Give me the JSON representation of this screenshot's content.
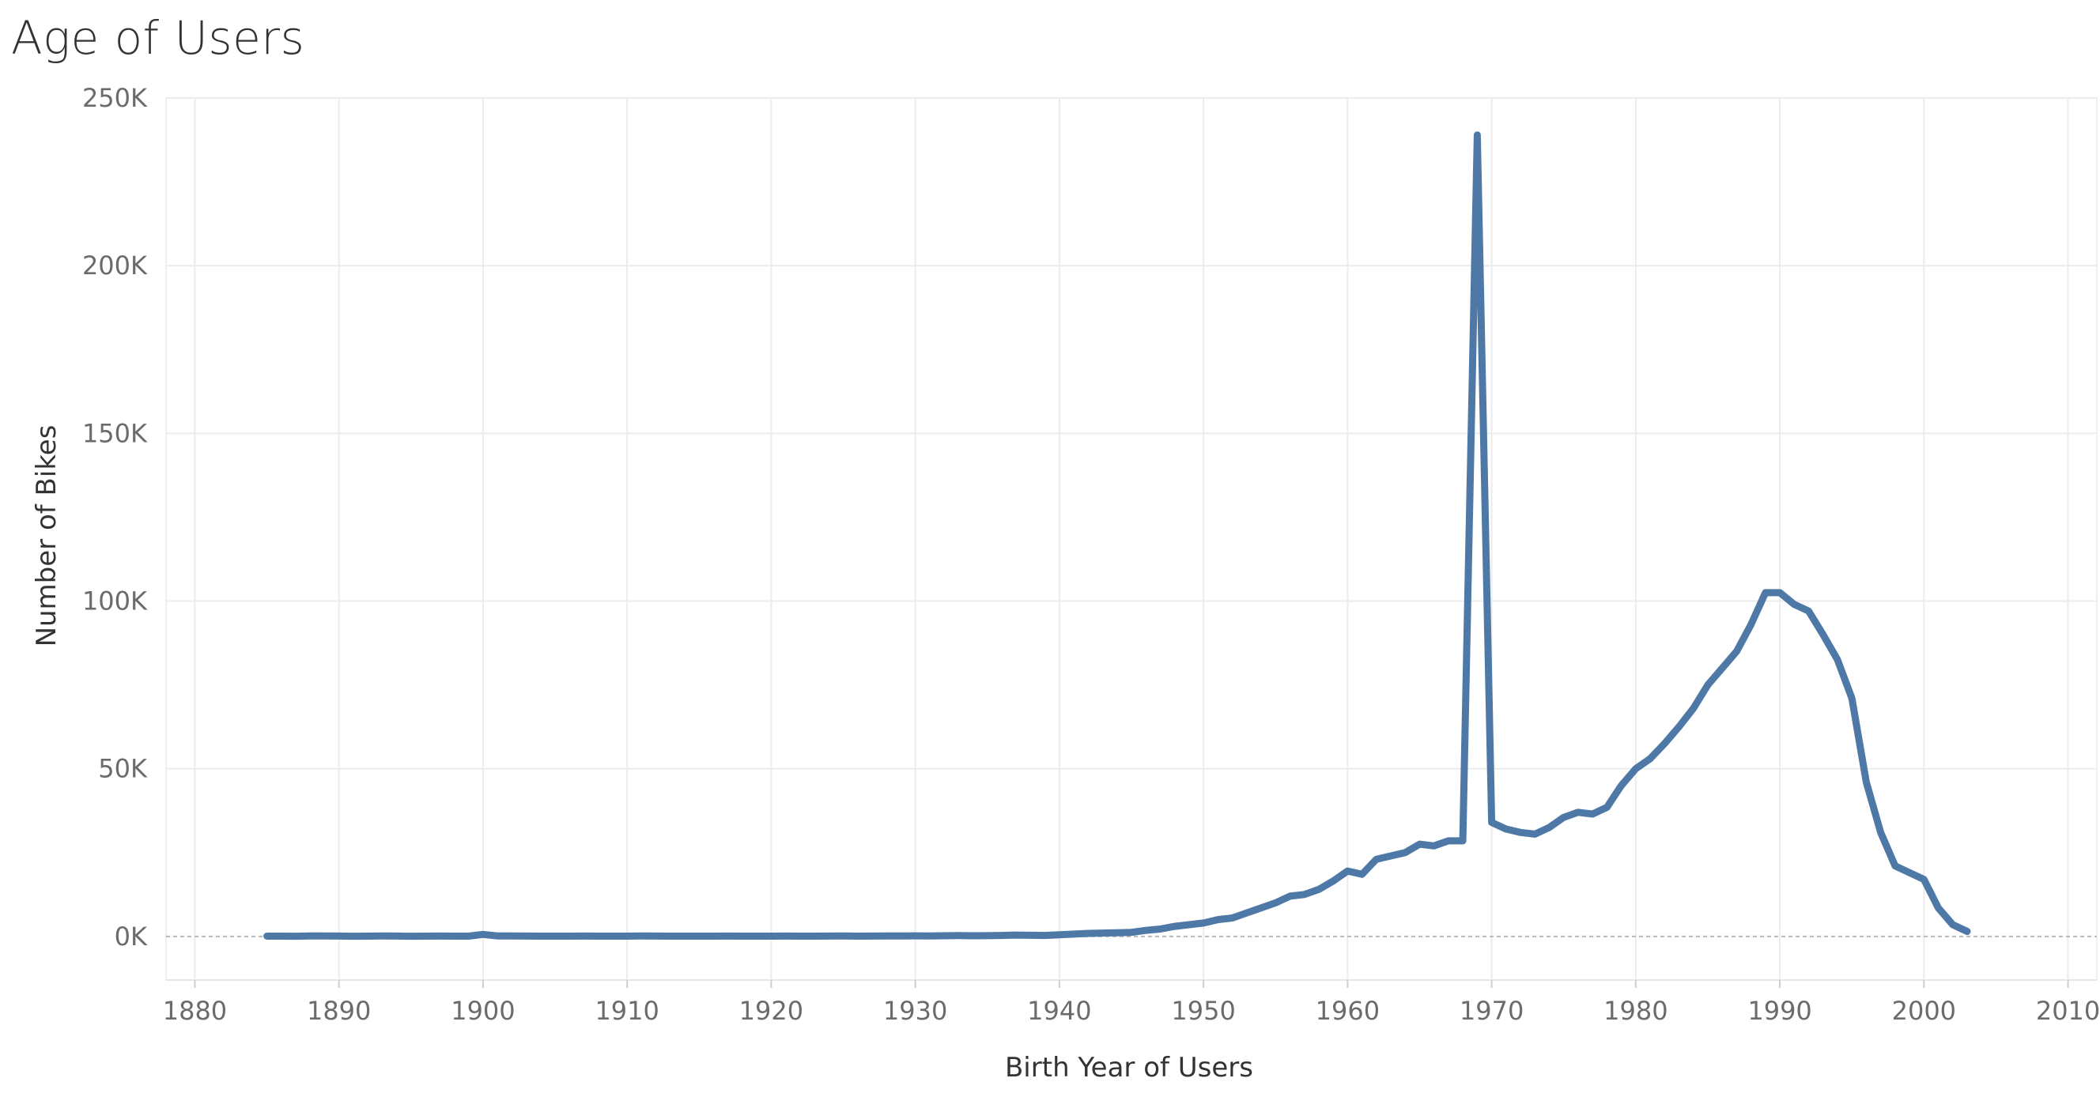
{
  "title": "Age of Users",
  "chart_data": {
    "type": "line",
    "title": "Age of Users",
    "xlabel": "Birth Year of Users",
    "ylabel": "Number of Bikes",
    "xlim": [
      1878,
      2012
    ],
    "ylim": [
      -13000,
      250000
    ],
    "x_ticks": [
      1880,
      1890,
      1900,
      1910,
      1920,
      1930,
      1940,
      1950,
      1960,
      1970,
      1980,
      1990,
      2000,
      2010
    ],
    "x_tick_labels": [
      "1880",
      "1890",
      "1900",
      "1910",
      "1920",
      "1930",
      "1940",
      "1950",
      "1960",
      "1970",
      "1980",
      "1990",
      "2000",
      "2010"
    ],
    "y_ticks": [
      0,
      50000,
      100000,
      150000,
      200000,
      250000
    ],
    "y_tick_labels": [
      "0K",
      "50K",
      "100K",
      "150K",
      "200K",
      "250K"
    ],
    "grid": true,
    "zero_line": "dashed",
    "line_color": "#4e79a7",
    "series": [
      {
        "x": [
          1885,
          1886,
          1887,
          1888,
          1889,
          1890,
          1891,
          1892,
          1893,
          1894,
          1895,
          1896,
          1897,
          1898,
          1899,
          1900,
          1901,
          1902,
          1903,
          1904,
          1905,
          1906,
          1907,
          1908,
          1909,
          1910,
          1911,
          1912,
          1913,
          1914,
          1915,
          1916,
          1917,
          1918,
          1919,
          1920,
          1921,
          1922,
          1923,
          1924,
          1925,
          1926,
          1927,
          1928,
          1929,
          1930,
          1931,
          1932,
          1933,
          1934,
          1935,
          1936,
          1937,
          1938,
          1939,
          1940,
          1941,
          1942,
          1943,
          1944,
          1945,
          1946,
          1947,
          1948,
          1949,
          1950,
          1951,
          1952,
          1953,
          1954,
          1955,
          1956,
          1957,
          1958,
          1959,
          1960,
          1961,
          1962,
          1963,
          1964,
          1965,
          1966,
          1967,
          1968,
          1969,
          1970,
          1971,
          1972,
          1973,
          1974,
          1975,
          1976,
          1977,
          1978,
          1979,
          1980,
          1981,
          1982,
          1983,
          1984,
          1985,
          1986,
          1987,
          1988,
          1989,
          1990,
          1991,
          1992,
          1993,
          1994,
          1995,
          1996,
          1997,
          1998,
          1999,
          2000,
          2001,
          2002,
          2003
        ],
        "values": [
          80,
          70,
          60,
          120,
          150,
          100,
          60,
          80,
          130,
          100,
          60,
          80,
          110,
          90,
          80,
          600,
          150,
          120,
          100,
          90,
          80,
          90,
          100,
          80,
          70,
          90,
          120,
          100,
          90,
          80,
          70,
          80,
          100,
          80,
          90,
          80,
          100,
          90,
          80,
          100,
          120,
          90,
          100,
          140,
          120,
          180,
          150,
          200,
          250,
          200,
          220,
          300,
          400,
          350,
          300,
          500,
          700,
          900,
          1000,
          1100,
          1200,
          1800,
          2200,
          3000,
          3500,
          4000,
          5000,
          5500,
          7000,
          8500,
          10000,
          12000,
          12500,
          14000,
          16500,
          19500,
          18500,
          23000,
          24000,
          25000,
          27500,
          27000,
          28500,
          28500,
          239000,
          34000,
          32000,
          31000,
          30500,
          32500,
          35500,
          37000,
          36500,
          38500,
          45000,
          50000,
          53000,
          57500,
          62500,
          68000,
          75000,
          80000,
          85000,
          93000,
          102500,
          102500,
          99000,
          97000,
          90000,
          82500,
          71000,
          46000,
          31000,
          21000,
          19000,
          17000,
          8500,
          3500,
          1500
        ]
      }
    ]
  }
}
